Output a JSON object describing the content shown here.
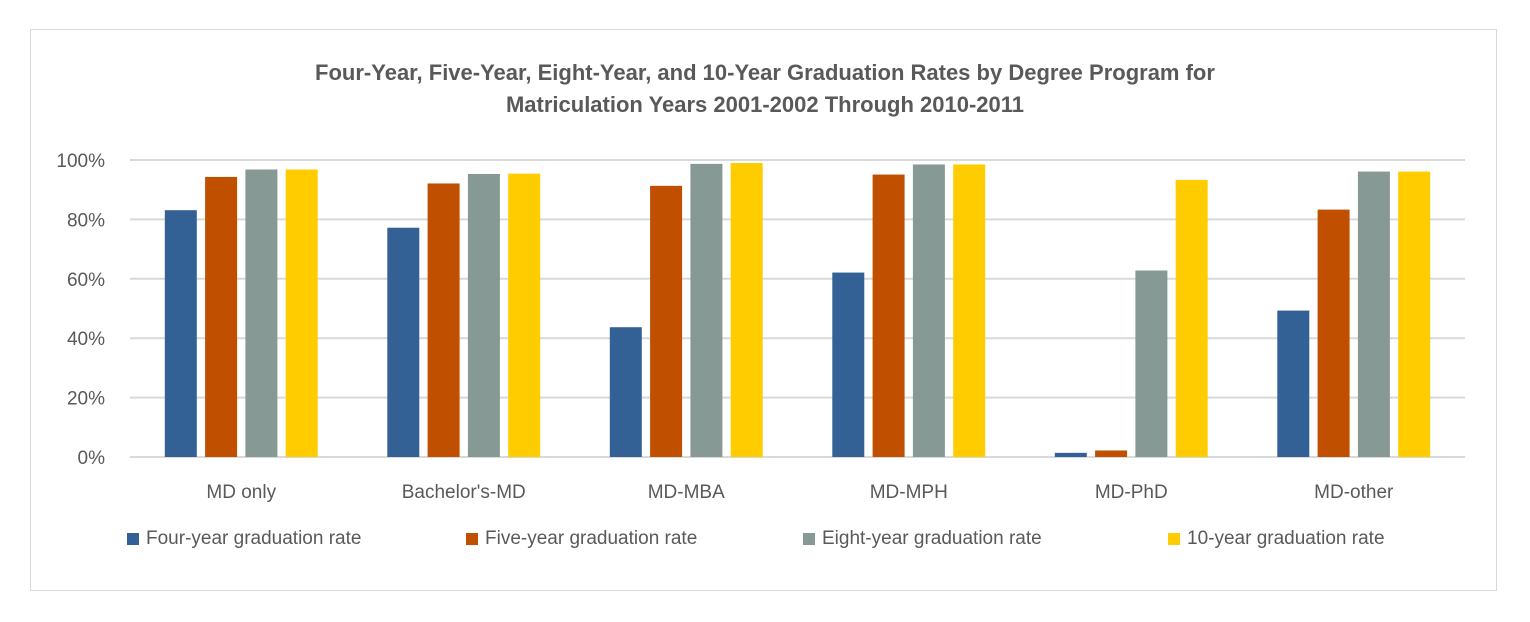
{
  "chart_data": {
    "type": "bar",
    "title": "Four-Year, Five-Year, Eight-Year, and 10-Year Graduation Rates by Degree Program for Matriculation Years 2001-2002 Through 2010-2011",
    "title_lines": [
      "Four-Year, Five-Year, Eight-Year, and 10-Year Graduation Rates by Degree Program for",
      "Matriculation Years 2001-2002 Through 2010-2011"
    ],
    "xlabel": "",
    "ylabel": "",
    "categories": [
      "MD only",
      "Bachelor's-MD",
      "MD-MBA",
      "MD-MPH",
      "MD-PhD",
      "MD-other"
    ],
    "series": [
      {
        "name": "Four-year graduation rate",
        "color": "#336195",
        "values": [
          83.1,
          77.2,
          43.7,
          62.1,
          1.4,
          49.3
        ]
      },
      {
        "name": "Five-year graduation rate",
        "color": "#c04f00",
        "values": [
          94.3,
          92.1,
          91.3,
          95.1,
          2.2,
          83.3
        ]
      },
      {
        "name": "Eight-year graduation rate",
        "color": "#869995",
        "values": [
          96.8,
          95.3,
          98.7,
          98.5,
          62.8,
          96.1
        ]
      },
      {
        "name": "10-year graduation rate",
        "color": "#ffcc00",
        "values": [
          96.8,
          95.4,
          99.0,
          98.5,
          93.3,
          96.1
        ]
      }
    ],
    "ylim": [
      0,
      100
    ],
    "yticks": [
      0,
      20,
      40,
      60,
      80,
      100
    ],
    "ytick_labels": [
      "0%",
      "20%",
      "40%",
      "60%",
      "80%",
      "100%"
    ],
    "grid": true,
    "legend_position": "bottom"
  }
}
